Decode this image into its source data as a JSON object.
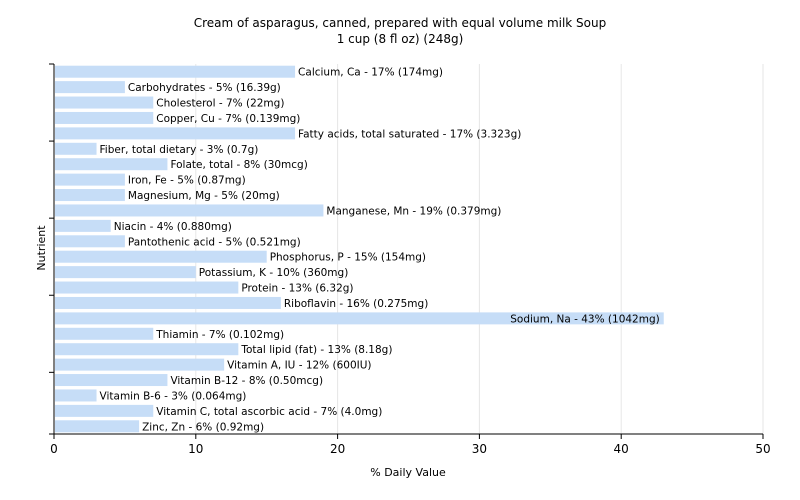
{
  "chart_data": {
    "type": "bar",
    "orientation": "horizontal",
    "title": "Cream of asparagus, canned, prepared with equal volume milk Soup",
    "subtitle": "1 cup (8 fl oz) (248g)",
    "xlabel": "% Daily Value",
    "ylabel": "Nutrient",
    "xlim": [
      0,
      50
    ],
    "xticks": [
      "0",
      "10",
      "20",
      "30",
      "40",
      "50"
    ],
    "grid": true,
    "bar_color": "#c6ddf7",
    "categories": [
      "Calcium, Ca",
      "Carbohydrates",
      "Cholesterol",
      "Copper, Cu",
      "Fatty acids, total saturated",
      "Fiber, total dietary",
      "Folate, total",
      "Iron, Fe",
      "Magnesium, Mg",
      "Manganese, Mn",
      "Niacin",
      "Pantothenic acid",
      "Phosphorus, P",
      "Potassium, K",
      "Protein",
      "Riboflavin",
      "Sodium, Na",
      "Thiamin",
      "Total lipid (fat)",
      "Vitamin A, IU",
      "Vitamin B-12",
      "Vitamin B-6",
      "Vitamin C, total ascorbic acid",
      "Zinc, Zn"
    ],
    "values": [
      17,
      5,
      7,
      7,
      17,
      3,
      8,
      5,
      5,
      19,
      4,
      5,
      15,
      10,
      13,
      16,
      43,
      7,
      13,
      12,
      8,
      3,
      7,
      6
    ],
    "labels": [
      "Calcium, Ca - 17% (174mg)",
      "Carbohydrates - 5% (16.39g)",
      "Cholesterol - 7% (22mg)",
      "Copper, Cu - 7% (0.139mg)",
      "Fatty acids, total saturated - 17% (3.323g)",
      "Fiber, total dietary - 3% (0.7g)",
      "Folate, total - 8% (30mcg)",
      "Iron, Fe - 5% (0.87mg)",
      "Magnesium, Mg - 5% (20mg)",
      "Manganese, Mn - 19% (0.379mg)",
      "Niacin - 4% (0.880mg)",
      "Pantothenic acid - 5% (0.521mg)",
      "Phosphorus, P - 15% (154mg)",
      "Potassium, K - 10% (360mg)",
      "Protein - 13% (6.32g)",
      "Riboflavin - 16% (0.275mg)",
      "Sodium, Na - 43% (1042mg)",
      "Thiamin - 7% (0.102mg)",
      "Total lipid (fat) - 13% (8.18g)",
      "Vitamin A, IU - 12% (600IU)",
      "Vitamin B-12 - 8% (0.50mcg)",
      "Vitamin B-6 - 3% (0.064mg)",
      "Vitamin C, total ascorbic acid - 7% (4.0mg)",
      "Zinc, Zn - 6% (0.92mg)"
    ]
  }
}
